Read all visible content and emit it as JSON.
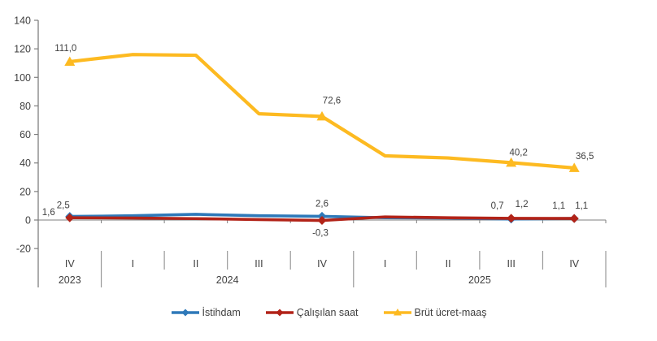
{
  "chart_data": {
    "type": "line",
    "title": "",
    "categories": [
      "IV",
      "I",
      "II",
      "III",
      "IV",
      "I",
      "II",
      "III",
      "IV"
    ],
    "year_groups": [
      {
        "label": "2023",
        "count": 1
      },
      {
        "label": "2024",
        "count": 4
      },
      {
        "label": "2025",
        "count": 4
      }
    ],
    "ylim": [
      -20,
      140
    ],
    "ytick_step": 20,
    "ytick_labels": [
      "140",
      "120",
      "100",
      "80",
      "60",
      "40",
      "20",
      "0",
      "-20"
    ],
    "grid": false,
    "legend_position": "bottom",
    "decimal_separator": ",",
    "marker_indices": [
      0,
      4,
      7,
      8
    ],
    "series": [
      {
        "name": "İstihdam",
        "color": "#2E79B9",
        "marker": "diamond",
        "values": [
          2.5,
          3.0,
          4.0,
          3.0,
          2.6,
          1.6,
          1.4,
          0.7,
          1.1
        ],
        "labeled_points": [
          {
            "index": 0,
            "text": "2,5",
            "dx": -8,
            "dy": -10
          },
          {
            "index": 4,
            "text": "2,6",
            "dx": 0,
            "dy": -12
          },
          {
            "index": 7,
            "text": "0,7",
            "dx": -17,
            "dy": -13
          },
          {
            "index": 8,
            "text": "1,1",
            "dx": -19,
            "dy": -12
          }
        ]
      },
      {
        "name": "Çalışılan saat",
        "color": "#B22318",
        "marker": "diamond",
        "values": [
          1.6,
          1.4,
          1.0,
          0.3,
          -0.3,
          2.2,
          1.6,
          1.2,
          1.1
        ],
        "labeled_points": [
          {
            "index": 0,
            "text": "1,6",
            "dx": -26,
            "dy": -3
          },
          {
            "index": 4,
            "text": "-0,3",
            "dx": -2,
            "dy": 19
          },
          {
            "index": 7,
            "text": "1,2",
            "dx": 13,
            "dy": -14
          },
          {
            "index": 8,
            "text": "1,1",
            "dx": 9,
            "dy": -12
          }
        ]
      },
      {
        "name": "Brüt ücret-maaş",
        "color": "#FDBA21",
        "marker": "triangle",
        "values": [
          111.0,
          116.0,
          115.5,
          74.5,
          72.6,
          45.0,
          43.5,
          40.2,
          36.5
        ],
        "labeled_points": [
          {
            "index": 0,
            "text": "111,0",
            "dx": -5,
            "dy": -13
          },
          {
            "index": 4,
            "text": "72,6",
            "dx": 12,
            "dy": -16
          },
          {
            "index": 7,
            "text": "40,2",
            "dx": 9,
            "dy": -9
          },
          {
            "index": 8,
            "text": "36,5",
            "dx": 13,
            "dy": -11
          }
        ]
      }
    ]
  },
  "colors": {
    "axis": "#7f7f7f",
    "separator": "#999999",
    "text": "#3f3f3f",
    "background": "#ffffff"
  }
}
